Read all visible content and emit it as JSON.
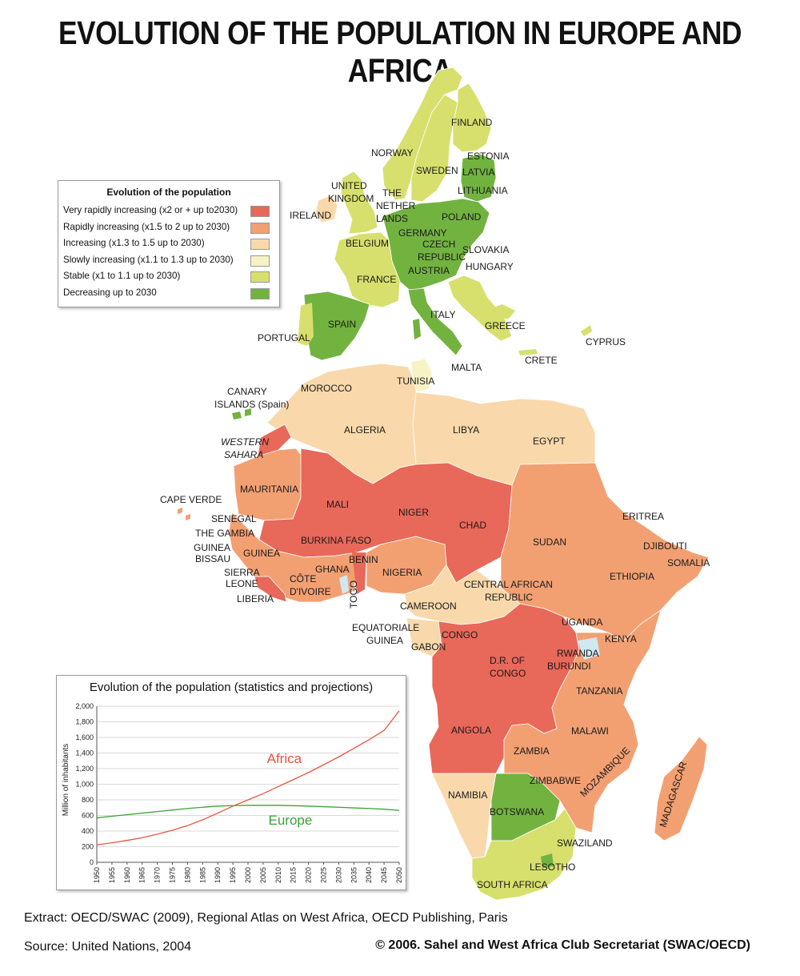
{
  "title": "EVOLUTION OF THE POPULATION IN EUROPE AND AFRICA",
  "colors": {
    "very_rapid": "#e8685a",
    "rapid": "#f2a072",
    "increasing": "#f9d9ab",
    "slow": "#f7f3c6",
    "stable": "#d7e06d",
    "decreasing": "#72b340",
    "water": "#cfe8f2"
  },
  "legend": {
    "title": "Evolution of the population",
    "items": [
      {
        "label": "Very rapidly increasing (x2 or + up to2030)",
        "color": "#e8685a"
      },
      {
        "label": "Rapidly increasing (x1.5 to 2 up to 2030)",
        "color": "#f2a072"
      },
      {
        "label": "Increasing (x1.3 to 1.5 up to 2030)",
        "color": "#f9d9ab"
      },
      {
        "label": "Slowly increasing (x1.1 to 1.3 up to 2030)",
        "color": "#f7f3c6"
      },
      {
        "label": "Stable (x1 to 1.1 up to  2030)",
        "color": "#d7e06d"
      },
      {
        "label": "Decreasing up to 2030",
        "color": "#72b340"
      }
    ]
  },
  "countries": {
    "finland": "FINLAND",
    "norway": "NORWAY",
    "sweden": "SWEDEN",
    "estonia": "ESTONIA",
    "latvia": "LATVIA",
    "lithuania": "LITHUANIA",
    "united_kingdom_1": "UNITED",
    "united_kingdom_2": "KINGDOM",
    "ireland": "IRELAND",
    "netherlands_1": "THE",
    "netherlands_2": "NETHER",
    "netherlands_3": "LANDS",
    "poland": "POLAND",
    "germany": "GERMANY",
    "belgium": "BELGIUM",
    "czech_1": "CZECH",
    "czech_2": "REPUBLIC",
    "slovakia": "SLOVAKIA",
    "austria": "AUSTRIA",
    "hungary": "HUNGARY",
    "france": "FRANCE",
    "italy": "ITALY",
    "greece": "GREECE",
    "cyprus": "CYPRUS",
    "spain": "SPAIN",
    "portugal": "PORTUGAL",
    "malta": "MALTA",
    "crete": "CRETE",
    "canary_1": "CANARY",
    "canary_2": "ISLANDS (Spain)",
    "morocco": "MOROCCO",
    "tunisia": "TUNISIA",
    "algeria": "ALGERIA",
    "libya": "LIBYA",
    "egypt": "EGYPT",
    "western_sahara_1": "WESTERN",
    "western_sahara_2": "SAHARA",
    "mauritania": "MAURITANIA",
    "cape_verde": "CAPE VERDE",
    "senegal": "SENEGAL",
    "gambia": "THE GAMBIA",
    "guinea_bissau_1": "GUINEA",
    "guinea_bissau_2": "BISSAU",
    "guinea": "GUINEA",
    "mali": "MALI",
    "niger": "NIGER",
    "chad": "CHAD",
    "sudan": "SUDAN",
    "eritrea": "ERITREA",
    "djibouti": "DJIBOUTI",
    "somalia": "SOMALIA",
    "ethiopia": "ETHIOPIA",
    "burkina": "BURKINA FASO",
    "benin": "BENIN",
    "nigeria": "NIGERIA",
    "sierra_1": "SIERRA",
    "sierra_2": "LEONE",
    "liberia": "LIBERIA",
    "ivory_1": "CÔTE",
    "ivory_2": "D'IVOIRE",
    "ghana": "GHANA",
    "togo": "TOGO",
    "car_1": "CENTRAL AFRICAN",
    "car_2": "REPUBLIC",
    "cameroon": "CAMEROON",
    "eq_guinea_1": "EQUATORIALE",
    "eq_guinea_2": "GUINEA",
    "gabon": "GABON",
    "congo": "CONGO",
    "drc_1": "D.R. OF",
    "drc_2": "CONGO",
    "uganda": "UGANDA",
    "kenya": "KENYA",
    "rwanda": "RWANDA",
    "burundi": "BURUNDI",
    "tanzania": "TANZANIA",
    "angola": "ANGOLA",
    "zambia": "ZAMBIA",
    "malawi": "MALAWI",
    "mozambique": "MOZAMBIQUE",
    "zimbabwe": "ZIMBABWE",
    "madagascar": "MADAGASCAR",
    "namibia": "NAMIBIA",
    "botswana": "BOTSWANA",
    "swaziland": "SWAZILAND",
    "lesotho": "LESOTHO",
    "south_africa": "SOUTH AFRICA"
  },
  "chart": {
    "title": "Evolution of the population (statistics and projections)",
    "ylabel": "Million of inhabitants"
  },
  "chart_data": {
    "type": "line",
    "title": "Evolution of the population (statistics and projections)",
    "xlabel": "",
    "ylabel": "Million of inhabitants",
    "ylim": [
      0,
      2000
    ],
    "xlim": [
      1950,
      2050
    ],
    "grid": true,
    "yticks": [
      "0",
      "200",
      "400",
      "600",
      "800",
      "1,000",
      "1,200",
      "1,400",
      "1,600",
      "1,800",
      "2,000"
    ],
    "xticks": [
      "1950",
      "1955",
      "1960",
      "1965",
      "1970",
      "1975",
      "1980",
      "1985",
      "1990",
      "1995",
      "2000",
      "2005",
      "2010",
      "2015",
      "2020",
      "2025",
      "2030",
      "2035",
      "2040",
      "2045",
      "2050"
    ],
    "x": [
      1950,
      1955,
      1960,
      1965,
      1970,
      1975,
      1980,
      1985,
      1990,
      1995,
      2000,
      2005,
      2010,
      2015,
      2020,
      2025,
      2030,
      2035,
      2040,
      2045,
      2050
    ],
    "series": [
      {
        "name": "Africa",
        "color": "#e8553e",
        "values": [
          224,
          250,
          280,
          315,
          360,
          410,
          470,
          545,
          630,
          720,
          800,
          880,
          970,
          1060,
          1150,
          1250,
          1350,
          1460,
          1570,
          1690,
          1940
        ]
      },
      {
        "name": "Europe",
        "color": "#3aa33a",
        "values": [
          570,
          590,
          610,
          630,
          650,
          670,
          690,
          705,
          720,
          727,
          730,
          730,
          730,
          725,
          720,
          712,
          705,
          697,
          690,
          680,
          665
        ]
      }
    ]
  },
  "footer": {
    "extract": "Extract: OECD/SWAC (2009), Regional Atlas on West Africa, OECD Publishing, Paris",
    "source": "Source:  United Nations,  2004",
    "copyright": "© 2006. Sahel and West Africa Club Secretariat (SWAC/OECD)"
  }
}
